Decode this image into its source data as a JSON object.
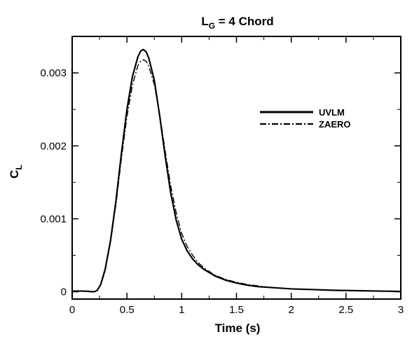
{
  "chart_data": {
    "type": "line",
    "title": {
      "main": "L",
      "sub": "G",
      "rest": " = 4 Chord"
    },
    "xlabel": "Time (s)",
    "ylabel": {
      "main": "C",
      "sub": "L"
    },
    "xlim": [
      0,
      3
    ],
    "ylim": [
      -0.0001,
      0.0035
    ],
    "x_ticks": [
      0,
      0.5,
      1,
      1.5,
      2,
      2.5,
      3
    ],
    "x_tick_labels": [
      "0",
      "0.5",
      "1",
      "1.5",
      "2",
      "2.5",
      "3"
    ],
    "y_ticks": [
      0,
      0.001,
      0.002,
      0.003
    ],
    "y_tick_labels": [
      "0",
      "0.001",
      "0.002",
      "0.003"
    ],
    "grid": false,
    "legend_position": "right",
    "series": [
      {
        "name": "UVLM",
        "style": "solid",
        "color": "#000000",
        "x": [
          0,
          0.1,
          0.2,
          0.23,
          0.26,
          0.3,
          0.35,
          0.4,
          0.45,
          0.5,
          0.55,
          0.6,
          0.625,
          0.65,
          0.675,
          0.7,
          0.75,
          0.8,
          0.85,
          0.9,
          0.95,
          1.0,
          1.05,
          1.1,
          1.15,
          1.2,
          1.3,
          1.4,
          1.5,
          1.6,
          1.7,
          1.8,
          2.0,
          2.2,
          2.4,
          2.6,
          2.8,
          3.0
        ],
        "y": [
          1e-05,
          1e-05,
          0.0,
          2e-05,
          0.0001,
          0.0003,
          0.0007,
          0.00125,
          0.0019,
          0.0025,
          0.00295,
          0.00322,
          0.0033,
          0.00332,
          0.00329,
          0.0032,
          0.0029,
          0.0024,
          0.00185,
          0.00135,
          0.00098,
          0.00072,
          0.00056,
          0.00045,
          0.00037,
          0.00031,
          0.00022,
          0.00016,
          0.00012,
          9e-05,
          7e-05,
          6e-05,
          4e-05,
          3e-05,
          2e-05,
          1.5e-05,
          1e-05,
          5e-06
        ]
      },
      {
        "name": "ZAERO",
        "style": "dashdot",
        "color": "#000000",
        "x": [
          0,
          0.1,
          0.2,
          0.23,
          0.26,
          0.3,
          0.35,
          0.4,
          0.45,
          0.5,
          0.55,
          0.6,
          0.625,
          0.65,
          0.675,
          0.7,
          0.75,
          0.8,
          0.85,
          0.9,
          0.95,
          1.0,
          1.05,
          1.1,
          1.15,
          1.2,
          1.3,
          1.4,
          1.5,
          1.6,
          1.7,
          1.8,
          2.0,
          2.2,
          2.4,
          2.6,
          2.8,
          3.0
        ],
        "y": [
          1e-05,
          1e-05,
          0.0,
          2e-05,
          9e-05,
          0.00028,
          0.00068,
          0.0012,
          0.00183,
          0.0024,
          0.00283,
          0.0031,
          0.00316,
          0.00318,
          0.00316,
          0.00309,
          0.00284,
          0.00242,
          0.00192,
          0.00145,
          0.00108,
          0.0008,
          0.00062,
          0.0005,
          0.0004,
          0.00033,
          0.00023,
          0.00017,
          0.00013,
          0.0001,
          8e-05,
          6e-05,
          4e-05,
          3e-05,
          2e-05,
          1.5e-05,
          1e-05,
          5e-06
        ]
      }
    ]
  }
}
